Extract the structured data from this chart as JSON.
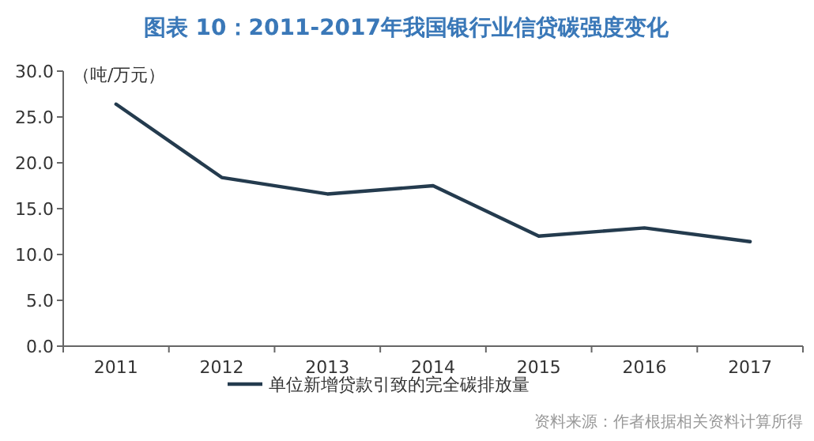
{
  "chart_data": {
    "type": "line",
    "title": "图表 10：2011-2017年我国银行业信贷碳强度变化",
    "ylabel": "（吨/万元）",
    "categories": [
      "2011",
      "2012",
      "2013",
      "2014",
      "2015",
      "2016",
      "2017"
    ],
    "series": [
      {
        "name": "单位新增贷款引致的完全碳排放量",
        "color": "#243b4e",
        "values": [
          26.4,
          18.4,
          16.6,
          17.5,
          12.0,
          12.9,
          11.4
        ]
      }
    ],
    "ylim": [
      0,
      30
    ],
    "yticks": [
      {
        "value": 0,
        "label": "0.0"
      },
      {
        "value": 5,
        "label": "5.0"
      },
      {
        "value": 10,
        "label": "10.0"
      },
      {
        "value": 15,
        "label": "15.0"
      },
      {
        "value": 20,
        "label": "20.0"
      },
      {
        "value": 25,
        "label": "25.0"
      },
      {
        "value": 30,
        "label": "30.0"
      }
    ],
    "legend": "bottom",
    "annotations": [
      "资料来源：作者根据相关资料计算所得"
    ]
  }
}
